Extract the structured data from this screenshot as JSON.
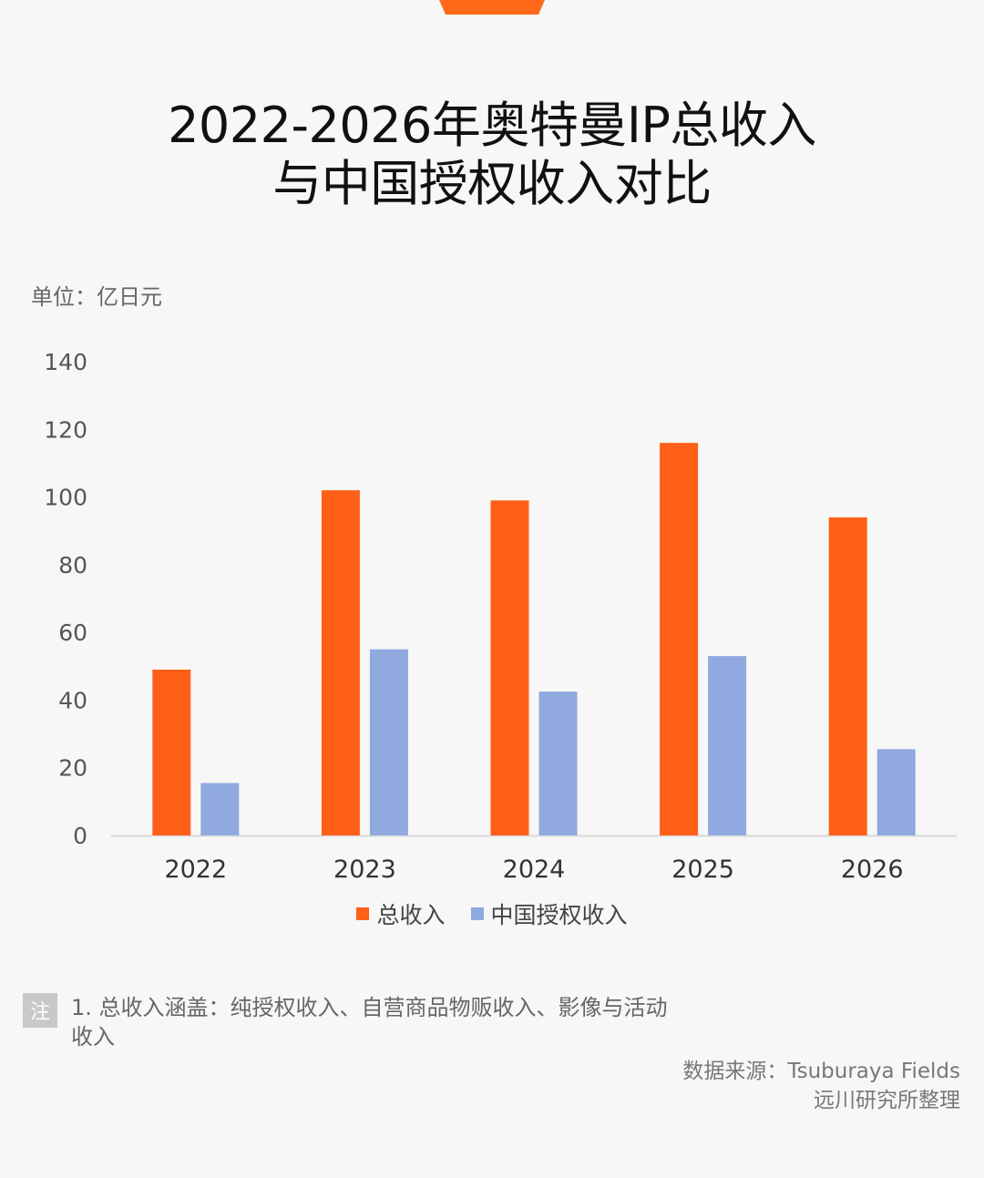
{
  "title_line1": "2022-2026年奥特曼IP总收入",
  "title_line2": "与中国授权收入对比",
  "unit_label": "单位：亿日元",
  "colors": {
    "accent": "#ff6a1a",
    "total": "#ff5f17",
    "china": "#90aadf"
  },
  "chart_data": {
    "type": "bar",
    "title": "2022-2026年奥特曼IP总收入与中国授权收入对比",
    "categories": [
      "2022",
      "2023",
      "2024",
      "2025",
      "2026"
    ],
    "series": [
      {
        "name": "总收入",
        "values": [
          49,
          102,
          99,
          116,
          94
        ]
      },
      {
        "name": "中国授权收入",
        "values": [
          15.5,
          55,
          42.5,
          53,
          25.5
        ]
      }
    ],
    "yticks": [
      "0",
      "20",
      "40",
      "60",
      "80",
      "100",
      "120",
      "140"
    ],
    "ylim": [
      0,
      140
    ],
    "grid": false,
    "legend": "bottom"
  },
  "legend": {
    "total": "总收入",
    "china": "中国授权收入"
  },
  "note": {
    "badge": "注",
    "text": "1. 总收入涵盖：纯授权收入、自营商品物贩收入、影像与活动收入"
  },
  "source": {
    "line1": "数据来源：Tsuburaya Fields",
    "line2": "远川研究所整理"
  }
}
